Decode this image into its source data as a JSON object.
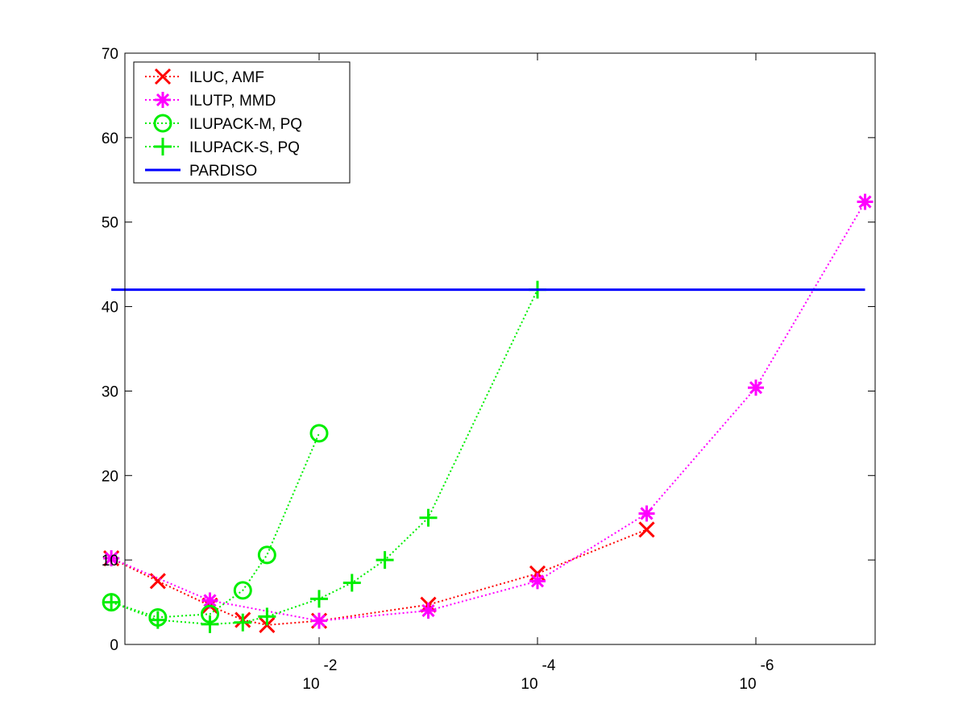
{
  "chart_data": {
    "type": "line",
    "xscale": "log-reversed",
    "x_tick_labels": [
      {
        "x": 0.01,
        "base": "10",
        "exponent": "-2"
      },
      {
        "x": 0.0001,
        "base": "10",
        "exponent": "-4"
      },
      {
        "x": 1e-06,
        "base": "10",
        "exponent": "-6"
      }
    ],
    "y_tick_labels": [
      "0",
      "10",
      "20",
      "30",
      "40",
      "50",
      "60",
      "70"
    ],
    "y_ticks": [
      0,
      10,
      20,
      30,
      40,
      50,
      60,
      70
    ],
    "xlim": [
      1.0,
      1e-07
    ],
    "ylim": [
      0,
      70
    ],
    "grid": false,
    "legend_position": "top-left",
    "series": [
      {
        "name": "ILUC, AMF",
        "color": "#ff0000",
        "marker": "x",
        "line": "dotted",
        "points": [
          [
            0.8,
            10.2
          ],
          [
            0.3,
            7.5
          ],
          [
            0.1,
            4.6
          ],
          [
            0.05,
            2.9
          ],
          [
            0.03,
            2.3
          ],
          [
            0.01,
            2.8
          ],
          [
            0.001,
            4.7
          ],
          [
            0.0001,
            8.4
          ],
          [
            1e-05,
            13.6
          ]
        ]
      },
      {
        "name": "ILUTP, MMD",
        "color": "#ff00ff",
        "marker": "star",
        "line": "dotted",
        "points": [
          [
            0.8,
            10.2
          ],
          [
            0.1,
            5.2
          ],
          [
            0.01,
            2.8
          ],
          [
            0.001,
            4.0
          ],
          [
            0.0001,
            7.5
          ],
          [
            1e-05,
            15.5
          ],
          [
            1e-06,
            30.4
          ],
          [
            1e-07,
            52.4
          ]
        ]
      },
      {
        "name": "ILUPACK-M, PQ",
        "color": "#00ee00",
        "marker": "circle",
        "line": "dotted",
        "points": [
          [
            0.8,
            5.0
          ],
          [
            0.3,
            3.2
          ],
          [
            0.1,
            3.6
          ],
          [
            0.05,
            6.4
          ],
          [
            0.03,
            10.6
          ],
          [
            0.01,
            25.0
          ]
        ]
      },
      {
        "name": "ILUPACK-S, PQ",
        "color": "#00ee00",
        "marker": "plus",
        "line": "dotted",
        "points": [
          [
            0.8,
            5.0
          ],
          [
            0.3,
            2.9
          ],
          [
            0.1,
            2.4
          ],
          [
            0.05,
            2.6
          ],
          [
            0.03,
            3.3
          ],
          [
            0.01,
            5.4
          ],
          [
            0.005,
            7.3
          ],
          [
            0.0025,
            10.0
          ],
          [
            0.001,
            15.0
          ],
          [
            0.0001,
            42.0
          ]
        ]
      },
      {
        "name": "PARDISO",
        "color": "#0000ff",
        "marker": "none",
        "line": "solid",
        "points": [
          [
            0.8,
            42.0
          ],
          [
            1e-07,
            42.0
          ]
        ]
      }
    ]
  }
}
